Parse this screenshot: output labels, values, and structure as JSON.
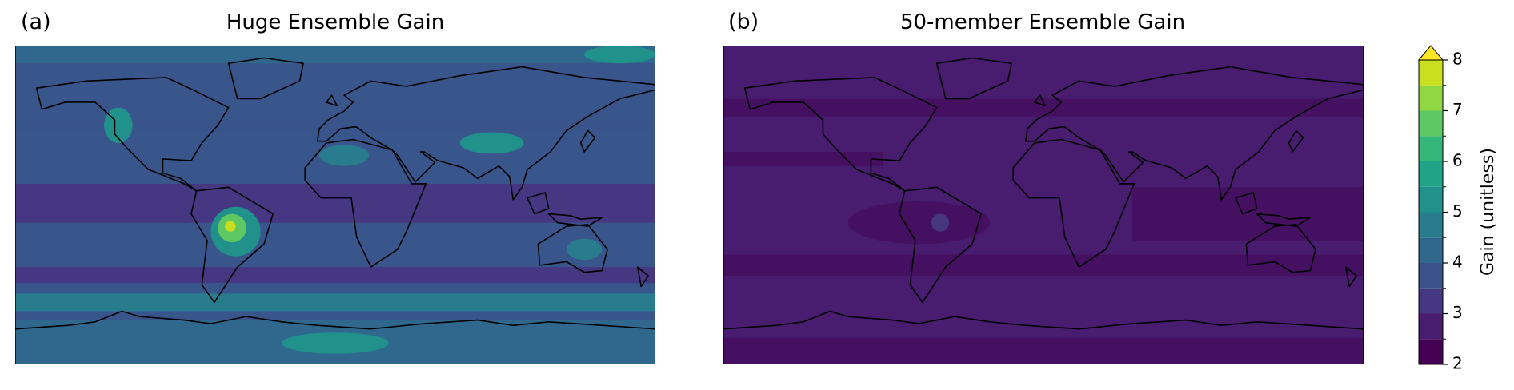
{
  "panels": [
    {
      "label": "(a)",
      "title": "Huge Ensemble Gain"
    },
    {
      "label": "(b)",
      "title": "50-member Ensemble Gain"
    }
  ],
  "colorbar": {
    "label": "Gain (unitless)",
    "lim": [
      2,
      8
    ],
    "ticks": [
      2,
      3,
      4,
      5,
      6,
      7,
      8
    ],
    "levels": [
      2,
      2.5,
      3,
      3.5,
      4,
      4.5,
      5,
      5.5,
      6,
      6.5,
      7,
      7.5,
      8
    ],
    "colors": [
      "#440154",
      "#481c6e",
      "#453781",
      "#3b528b",
      "#30678d",
      "#287c8e",
      "#21918c",
      "#20a386",
      "#35b779",
      "#5ec962",
      "#90d743",
      "#c8e020"
    ],
    "over_color": "#fde725"
  }
}
